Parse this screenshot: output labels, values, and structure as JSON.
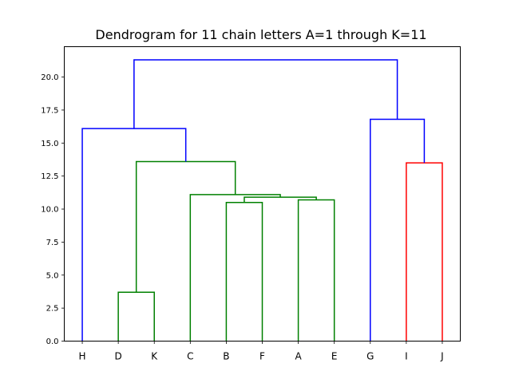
{
  "chart_data": {
    "type": "dendrogram",
    "title": "Dendrogram for 11 chain letters A=1 through K=11",
    "leaves": [
      "H",
      "D",
      "K",
      "C",
      "B",
      "F",
      "A",
      "E",
      "G",
      "I",
      "J"
    ],
    "ylim": [
      0,
      22.3
    ],
    "yticks": [
      "0.0",
      "2.5",
      "5.0",
      "7.5",
      "10.0",
      "12.5",
      "15.0",
      "17.5",
      "20.0"
    ],
    "ytick_values": [
      0,
      2.5,
      5,
      7.5,
      10,
      12.5,
      15,
      17.5,
      20
    ],
    "colors": {
      "cluster_green": "#008000",
      "cluster_red": "#ff0000",
      "above_threshold": "#0000ff"
    },
    "links": [
      {
        "left": 1,
        "right": 2,
        "left_h": 0,
        "right_h": 0,
        "height": 3.7,
        "color": "cluster_green"
      },
      {
        "left": 4,
        "right": 5,
        "left_h": 0,
        "right_h": 0,
        "height": 10.5,
        "color": "cluster_green"
      },
      {
        "left": 6,
        "right": 7,
        "left_h": 0,
        "right_h": 0,
        "height": 10.7,
        "color": "cluster_green"
      },
      {
        "left": 4.5,
        "right": 6.5,
        "left_h": 10.5,
        "right_h": 10.7,
        "height": 10.9,
        "color": "cluster_green"
      },
      {
        "left": 3,
        "right": 5.5,
        "left_h": 0,
        "right_h": 10.9,
        "height": 11.1,
        "color": "cluster_green"
      },
      {
        "left": 1.5,
        "right": 4.25,
        "left_h": 3.7,
        "right_h": 11.1,
        "height": 13.6,
        "color": "cluster_green"
      },
      {
        "left": 9,
        "right": 10,
        "left_h": 0,
        "right_h": 0,
        "height": 13.5,
        "color": "cluster_red"
      },
      {
        "left": 0,
        "right": 2.875,
        "left_h": 0,
        "right_h": 13.6,
        "height": 16.1,
        "color": "above_threshold"
      },
      {
        "left": 8,
        "right": 9.5,
        "left_h": 0,
        "right_h": 13.5,
        "height": 16.8,
        "color": "above_threshold"
      },
      {
        "left": 1.4375,
        "right": 8.75,
        "left_h": 16.1,
        "right_h": 16.8,
        "height": 21.3,
        "color": "above_threshold"
      }
    ]
  }
}
